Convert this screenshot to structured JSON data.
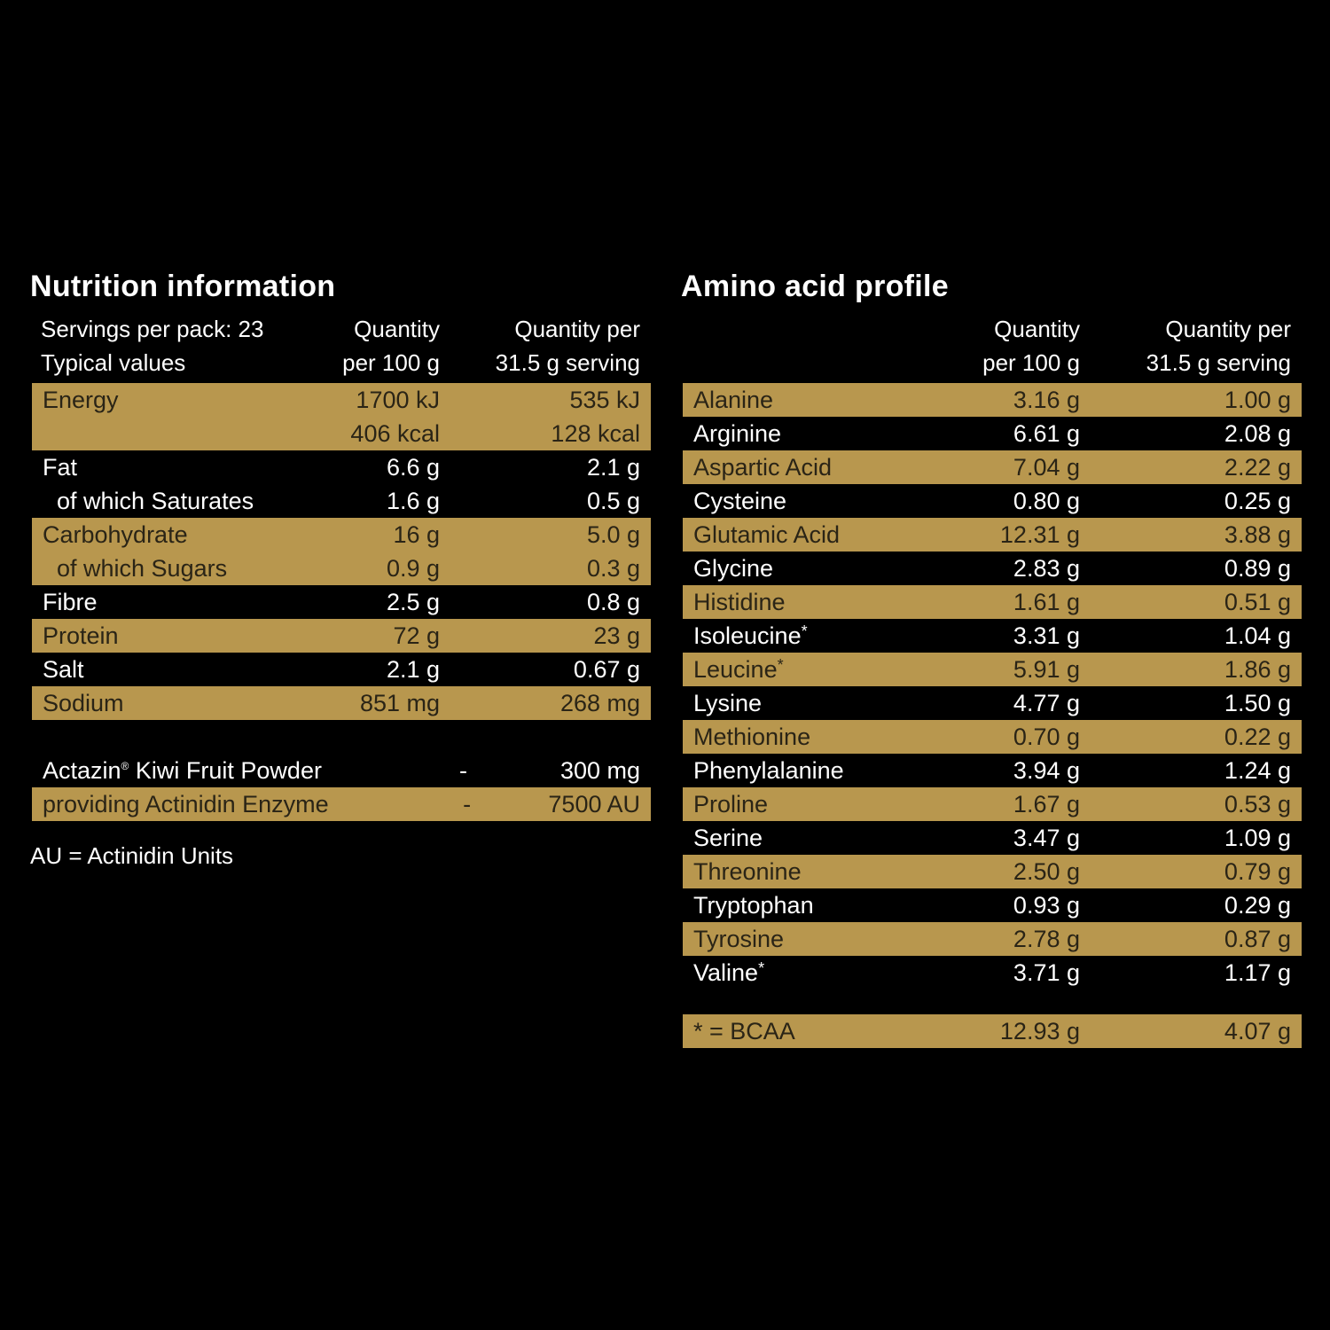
{
  "colors": {
    "background": "#000000",
    "band": "#B8974E",
    "band_text": "#2A2416",
    "text": "#FFFFFF"
  },
  "nutrition": {
    "title": "Nutrition information",
    "header": {
      "col0_line1": "Servings per pack: 23",
      "col0_line2": "Typical values",
      "col1_line1": "Quantity",
      "col1_line2": "per 100 g",
      "col2_line1": "Quantity per",
      "col2_line2": "31.5 g serving"
    },
    "rows": [
      {
        "label": "Energy",
        "per100_1": "1700 kJ",
        "per100_2": "406 kcal",
        "serving_1": "535 kJ",
        "serving_2": "128 kcal"
      },
      {
        "label": "Fat",
        "per100": "6.6 g",
        "serving": "2.1 g"
      },
      {
        "label": "of which Saturates",
        "per100": "1.6 g",
        "serving": "0.5 g"
      },
      {
        "label": "Carbohydrate",
        "per100": "16 g",
        "serving": "5.0 g"
      },
      {
        "label": "of which Sugars",
        "per100": "0.9 g",
        "serving": "0.3 g"
      },
      {
        "label": "Fibre",
        "per100": "2.5 g",
        "serving": "0.8 g"
      },
      {
        "label": "Protein",
        "per100": "72 g",
        "serving": "23 g"
      },
      {
        "label": "Salt",
        "per100": "2.1 g",
        "serving": "0.67 g"
      },
      {
        "label": "Sodium",
        "per100": "851 mg",
        "serving": "268 mg"
      }
    ],
    "extras": [
      {
        "label": "Actazin",
        "reg": "®",
        "label_rest": " Kiwi Fruit Powder",
        "per100": "-",
        "serving": "300 mg"
      },
      {
        "label": "providing Actinidin Enzyme",
        "per100": "-",
        "serving": "7500 AU"
      }
    ],
    "footnote": "AU = Actinidin Units"
  },
  "amino": {
    "title": "Amino acid profile",
    "header": {
      "col1_line1": "Quantity",
      "col1_line2": "per 100 g",
      "col2_line1": "Quantity per",
      "col2_line2": "31.5 g serving"
    },
    "rows": [
      {
        "label": "Alanine",
        "star": "",
        "per100": "3.16 g",
        "serving": "1.00 g"
      },
      {
        "label": "Arginine",
        "star": "",
        "per100": "6.61 g",
        "serving": "2.08 g"
      },
      {
        "label": "Aspartic Acid",
        "star": "",
        "per100": "7.04 g",
        "serving": "2.22 g"
      },
      {
        "label": "Cysteine",
        "star": "",
        "per100": "0.80 g",
        "serving": "0.25 g"
      },
      {
        "label": "Glutamic Acid",
        "star": "",
        "per100": "12.31 g",
        "serving": "3.88 g"
      },
      {
        "label": "Glycine",
        "star": "",
        "per100": "2.83 g",
        "serving": "0.89 g"
      },
      {
        "label": "Histidine",
        "star": "",
        "per100": "1.61 g",
        "serving": "0.51 g"
      },
      {
        "label": "Isoleucine",
        "star": "*",
        "per100": "3.31 g",
        "serving": "1.04 g"
      },
      {
        "label": "Leucine",
        "star": "*",
        "per100": "5.91 g",
        "serving": "1.86 g"
      },
      {
        "label": "Lysine",
        "star": "",
        "per100": "4.77 g",
        "serving": "1.50 g"
      },
      {
        "label": "Methionine",
        "star": "",
        "per100": "0.70 g",
        "serving": "0.22 g"
      },
      {
        "label": "Phenylalanine",
        "star": "",
        "per100": "3.94 g",
        "serving": "1.24 g"
      },
      {
        "label": "Proline",
        "star": "",
        "per100": "1.67 g",
        "serving": "0.53 g"
      },
      {
        "label": "Serine",
        "star": "",
        "per100": "3.47 g",
        "serving": "1.09 g"
      },
      {
        "label": "Threonine",
        "star": "",
        "per100": "2.50 g",
        "serving": "0.79 g"
      },
      {
        "label": "Tryptophan",
        "star": "",
        "per100": "0.93 g",
        "serving": "0.29 g"
      },
      {
        "label": "Tyrosine",
        "star": "",
        "per100": "2.78 g",
        "serving": "0.87 g"
      },
      {
        "label": "Valine",
        "star": "*",
        "per100": "3.71 g",
        "serving": "1.17 g"
      }
    ],
    "bcaa": {
      "label": "* = BCAA",
      "per100": "12.93 g",
      "serving": "4.07 g"
    }
  }
}
